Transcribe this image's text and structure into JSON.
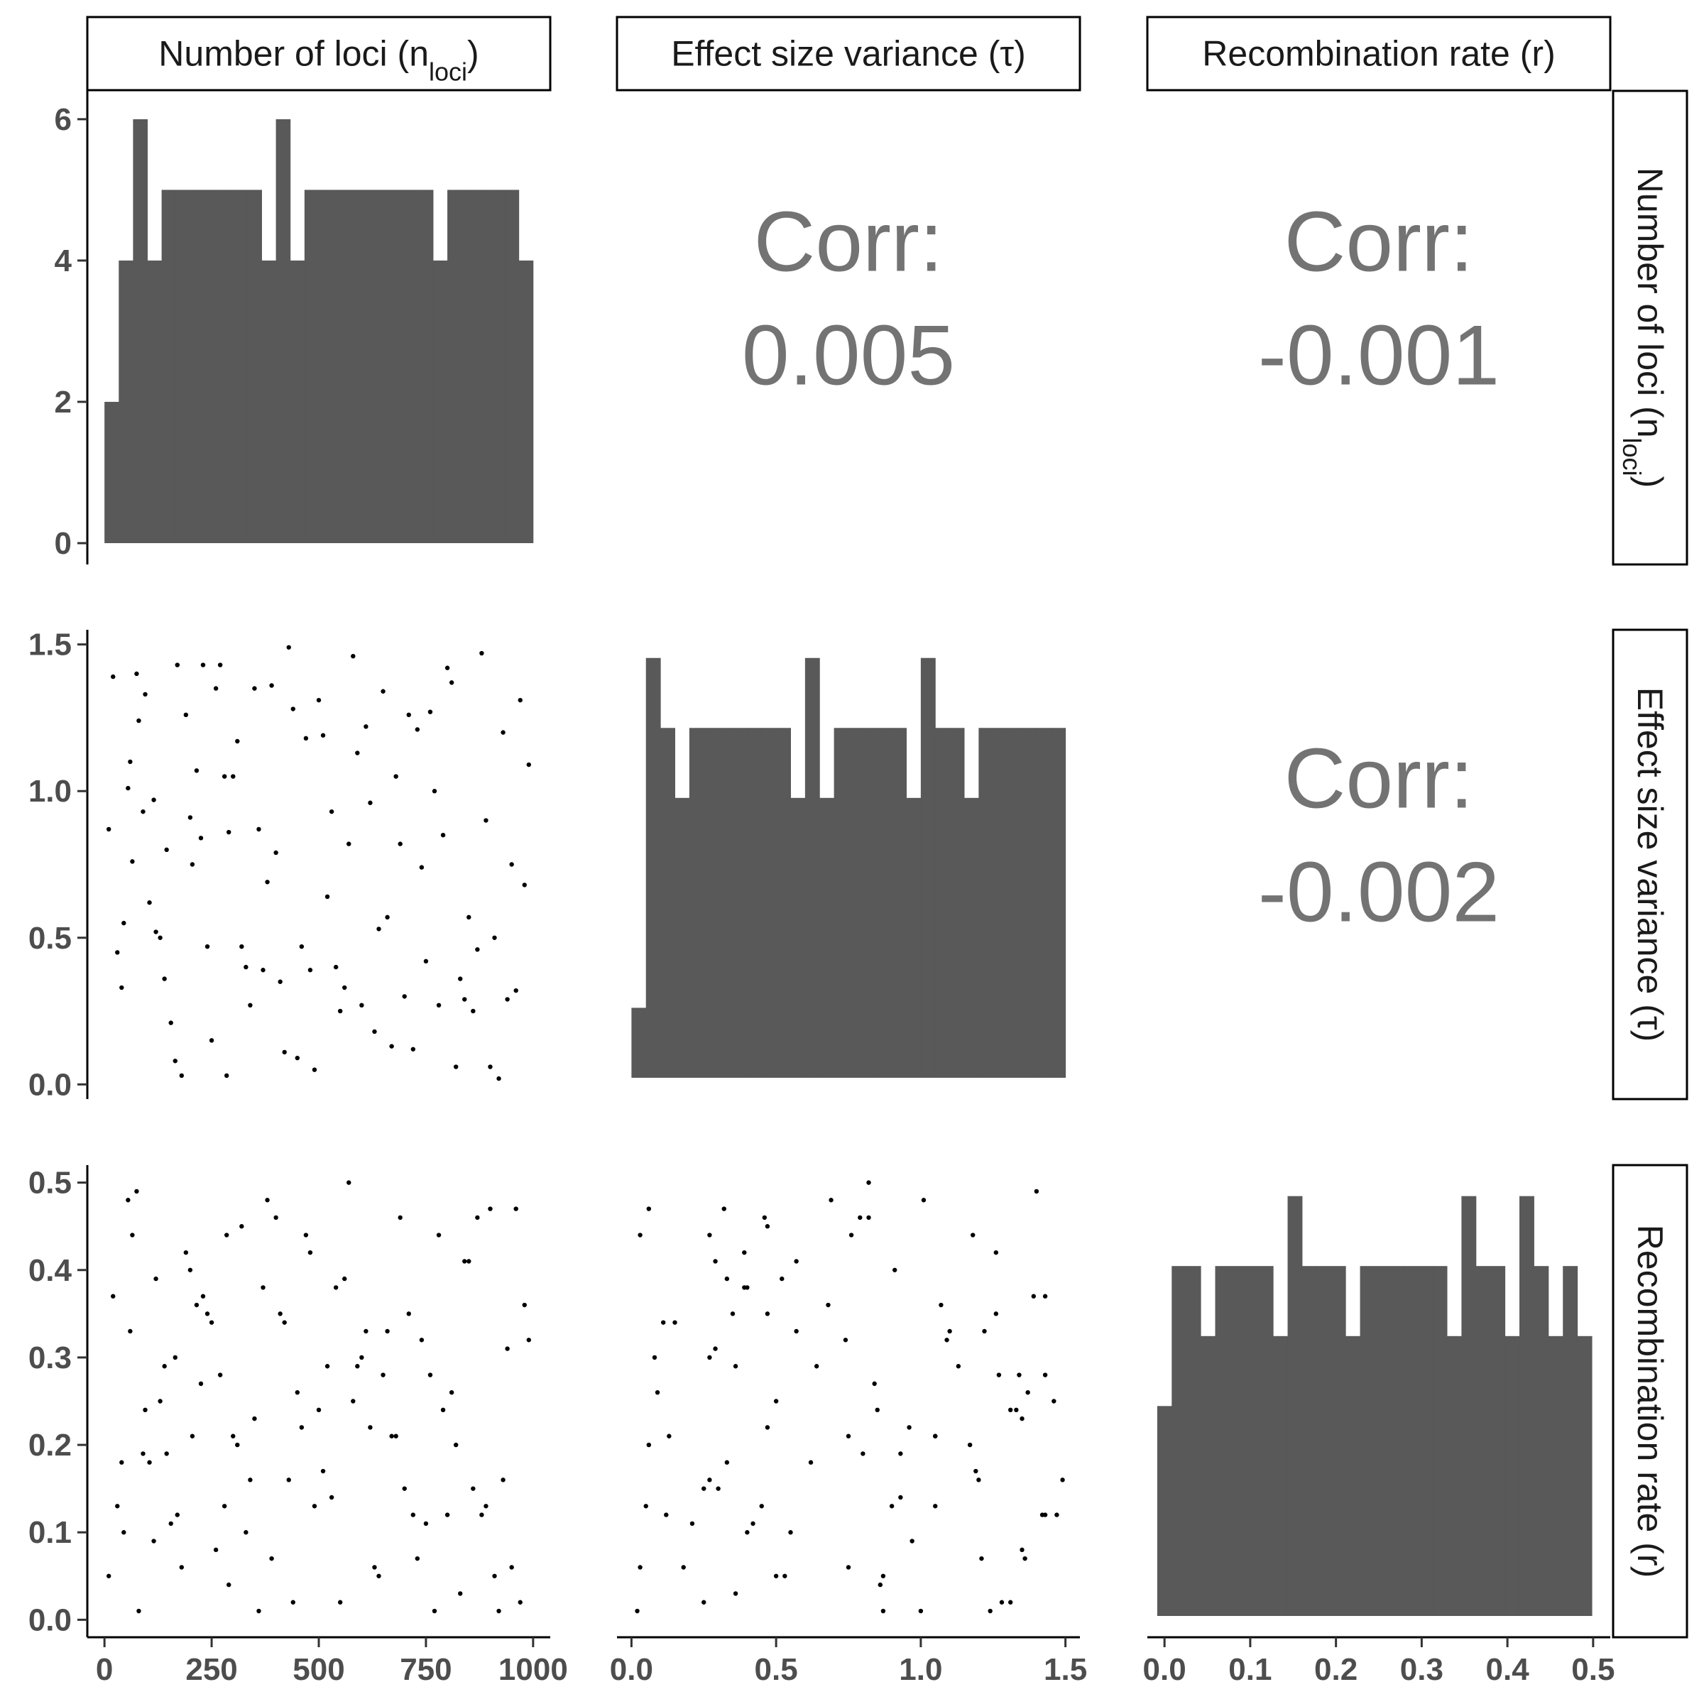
{
  "colors": {
    "bar": "#595959",
    "point": "#000000",
    "strip_border": "#000000",
    "corr_text": "#737373",
    "tick_text": "#4d4d4d"
  },
  "corr_label": "Corr:",
  "chart_data": {
    "type": "scatter",
    "layout": "pairs-matrix",
    "variables": [
      {
        "key": "n_loci",
        "label": "Number of loci",
        "symbol": "n",
        "subscript": "loci",
        "range": [
          -40,
          1040
        ],
        "ticks": [
          0,
          250,
          500,
          750,
          1000
        ]
      },
      {
        "key": "tau",
        "label": "Effect size variance",
        "symbol": "τ",
        "range": [
          -0.05,
          1.55
        ],
        "ticks": [
          0.0,
          0.5,
          1.0,
          1.5
        ]
      },
      {
        "key": "r",
        "label": "Recombination rate",
        "symbol": "r",
        "range": [
          -0.02,
          0.52
        ],
        "ticks": [
          0.0,
          0.1,
          0.2,
          0.3,
          0.4,
          0.5
        ]
      }
    ],
    "correlations": [
      {
        "row": 0,
        "col": 1,
        "value": "0.005"
      },
      {
        "row": 0,
        "col": 2,
        "value": "-0.001"
      },
      {
        "row": 1,
        "col": 2,
        "value": "-0.002"
      }
    ],
    "histograms": [
      {
        "variable": "n_loci",
        "ylim": [
          0,
          6.2
        ],
        "yticks": [
          0,
          2,
          4,
          6
        ],
        "bin_start": 0,
        "bin_width": 33.33,
        "counts": [
          2,
          4,
          6,
          4,
          5,
          5,
          5,
          5,
          5,
          5,
          5,
          4,
          6,
          4,
          5,
          5,
          5,
          5,
          5,
          5,
          5,
          5,
          5,
          4,
          5,
          5,
          5,
          5,
          5,
          4
        ]
      },
      {
        "variable": "tau",
        "ylim": [
          0,
          1.55
        ],
        "yticks": [
          0.0,
          0.5,
          1.0,
          1.5
        ],
        "bin_start": 0.0,
        "bin_width": 0.05,
        "counts": [
          0.25,
          1.5,
          1.25,
          1.0,
          1.25,
          1.25,
          1.25,
          1.25,
          1.25,
          1.25,
          1.25,
          1.0,
          1.5,
          1.0,
          1.25,
          1.25,
          1.25,
          1.25,
          1.25,
          1.0,
          1.5,
          1.25,
          1.25,
          1.0,
          1.25,
          1.25,
          1.25,
          1.25,
          1.25,
          1.25
        ]
      },
      {
        "variable": "r",
        "ylim": [
          0,
          0.52
        ],
        "yticks": [
          0.0,
          0.1,
          0.2,
          0.3,
          0.4,
          0.5
        ],
        "bin_start": -0.0085,
        "bin_width": 0.0169,
        "counts": [
          0.25,
          0.4167,
          0.4167,
          0.3333,
          0.4167,
          0.4167,
          0.4167,
          0.4167,
          0.3333,
          0.5,
          0.4167,
          0.4167,
          0.4167,
          0.3333,
          0.4167,
          0.4167,
          0.4167,
          0.4167,
          0.4167,
          0.4167,
          0.3333,
          0.5,
          0.4167,
          0.4167,
          0.3333,
          0.5,
          0.4167,
          0.3333,
          0.4167,
          0.3333
        ]
      }
    ],
    "scatter_panels": [
      {
        "x": "n_loci",
        "y": "tau"
      },
      {
        "x": "n_loci",
        "y": "r"
      },
      {
        "x": "tau",
        "y": "r"
      }
    ],
    "points": [
      [
        10,
        0.87,
        0.05
      ],
      [
        20,
        1.39,
        0.37
      ],
      [
        30,
        0.45,
        0.13
      ],
      [
        40,
        0.33,
        0.18
      ],
      [
        45,
        0.55,
        0.1
      ],
      [
        55,
        1.01,
        0.48
      ],
      [
        60,
        1.1,
        0.33
      ],
      [
        65,
        0.76,
        0.44
      ],
      [
        75,
        1.4,
        0.49
      ],
      [
        80,
        1.24,
        0.01
      ],
      [
        90,
        0.93,
        0.19
      ],
      [
        95,
        1.33,
        0.24
      ],
      [
        105,
        0.62,
        0.18
      ],
      [
        115,
        0.97,
        0.09
      ],
      [
        120,
        0.52,
        0.39
      ],
      [
        130,
        0.5,
        0.25
      ],
      [
        140,
        0.36,
        0.29
      ],
      [
        145,
        0.8,
        0.19
      ],
      [
        155,
        0.21,
        0.11
      ],
      [
        165,
        0.08,
        0.3
      ],
      [
        170,
        1.43,
        0.12
      ],
      [
        180,
        0.03,
        0.06
      ],
      [
        190,
        1.26,
        0.42
      ],
      [
        200,
        0.91,
        0.4
      ],
      [
        205,
        0.75,
        0.21
      ],
      [
        215,
        1.07,
        0.36
      ],
      [
        225,
        0.84,
        0.27
      ],
      [
        230,
        1.43,
        0.37
      ],
      [
        240,
        0.47,
        0.35
      ],
      [
        250,
        0.15,
        0.34
      ],
      [
        260,
        1.35,
        0.08
      ],
      [
        270,
        1.43,
        0.28
      ],
      [
        280,
        1.05,
        0.13
      ],
      [
        285,
        0.03,
        0.44
      ],
      [
        290,
        0.86,
        0.04
      ],
      [
        300,
        1.05,
        0.21
      ],
      [
        310,
        1.17,
        0.2
      ],
      [
        320,
        0.47,
        0.45
      ],
      [
        330,
        0.4,
        0.1
      ],
      [
        340,
        0.27,
        0.16
      ],
      [
        350,
        1.35,
        0.23
      ],
      [
        360,
        0.87,
        0.01
      ],
      [
        370,
        0.39,
        0.38
      ],
      [
        380,
        0.69,
        0.48
      ],
      [
        390,
        1.36,
        0.07
      ],
      [
        400,
        0.79,
        0.46
      ],
      [
        410,
        0.35,
        0.35
      ],
      [
        420,
        0.11,
        0.34
      ],
      [
        430,
        1.49,
        0.16
      ],
      [
        440,
        1.28,
        0.02
      ],
      [
        450,
        0.09,
        0.26
      ],
      [
        460,
        0.47,
        0.22
      ],
      [
        470,
        1.18,
        0.44
      ],
      [
        480,
        0.39,
        0.42
      ],
      [
        490,
        0.05,
        0.13
      ],
      [
        500,
        1.31,
        0.24
      ],
      [
        510,
        1.19,
        0.17
      ],
      [
        520,
        0.64,
        0.29
      ],
      [
        530,
        0.93,
        0.14
      ],
      [
        540,
        0.4,
        0.38
      ],
      [
        550,
        0.25,
        0.02
      ],
      [
        560,
        0.33,
        0.39
      ],
      [
        570,
        0.82,
        0.5
      ],
      [
        580,
        1.46,
        0.25
      ],
      [
        590,
        1.13,
        0.29
      ],
      [
        600,
        0.27,
        0.3
      ],
      [
        610,
        1.22,
        0.33
      ],
      [
        620,
        0.96,
        0.22
      ],
      [
        630,
        0.18,
        0.06
      ],
      [
        640,
        0.53,
        0.05
      ],
      [
        650,
        1.34,
        0.28
      ],
      [
        660,
        0.57,
        0.33
      ],
      [
        670,
        0.13,
        0.21
      ],
      [
        680,
        1.05,
        0.21
      ],
      [
        690,
        0.82,
        0.46
      ],
      [
        700,
        0.3,
        0.15
      ],
      [
        710,
        1.26,
        0.35
      ],
      [
        720,
        0.12,
        0.12
      ],
      [
        730,
        1.21,
        0.07
      ],
      [
        740,
        0.74,
        0.32
      ],
      [
        750,
        0.42,
        0.11
      ],
      [
        760,
        1.27,
        0.28
      ],
      [
        770,
        1.0,
        0.01
      ],
      [
        780,
        0.27,
        0.44
      ],
      [
        790,
        0.85,
        0.24
      ],
      [
        800,
        1.42,
        0.12
      ],
      [
        810,
        1.37,
        0.26
      ],
      [
        820,
        0.06,
        0.2
      ],
      [
        830,
        0.36,
        0.03
      ],
      [
        840,
        0.29,
        0.41
      ],
      [
        850,
        0.57,
        0.41
      ],
      [
        860,
        0.25,
        0.15
      ],
      [
        870,
        0.46,
        0.46
      ],
      [
        880,
        1.47,
        0.12
      ],
      [
        890,
        0.9,
        0.13
      ],
      [
        900,
        0.06,
        0.47
      ],
      [
        910,
        0.5,
        0.05
      ],
      [
        920,
        0.02,
        0.01
      ],
      [
        930,
        1.2,
        0.16
      ],
      [
        940,
        0.29,
        0.31
      ],
      [
        950,
        0.75,
        0.06
      ],
      [
        960,
        0.32,
        0.47
      ],
      [
        970,
        1.31,
        0.02
      ],
      [
        980,
        0.68,
        0.36
      ],
      [
        990,
        1.09,
        0.32
      ]
    ]
  }
}
